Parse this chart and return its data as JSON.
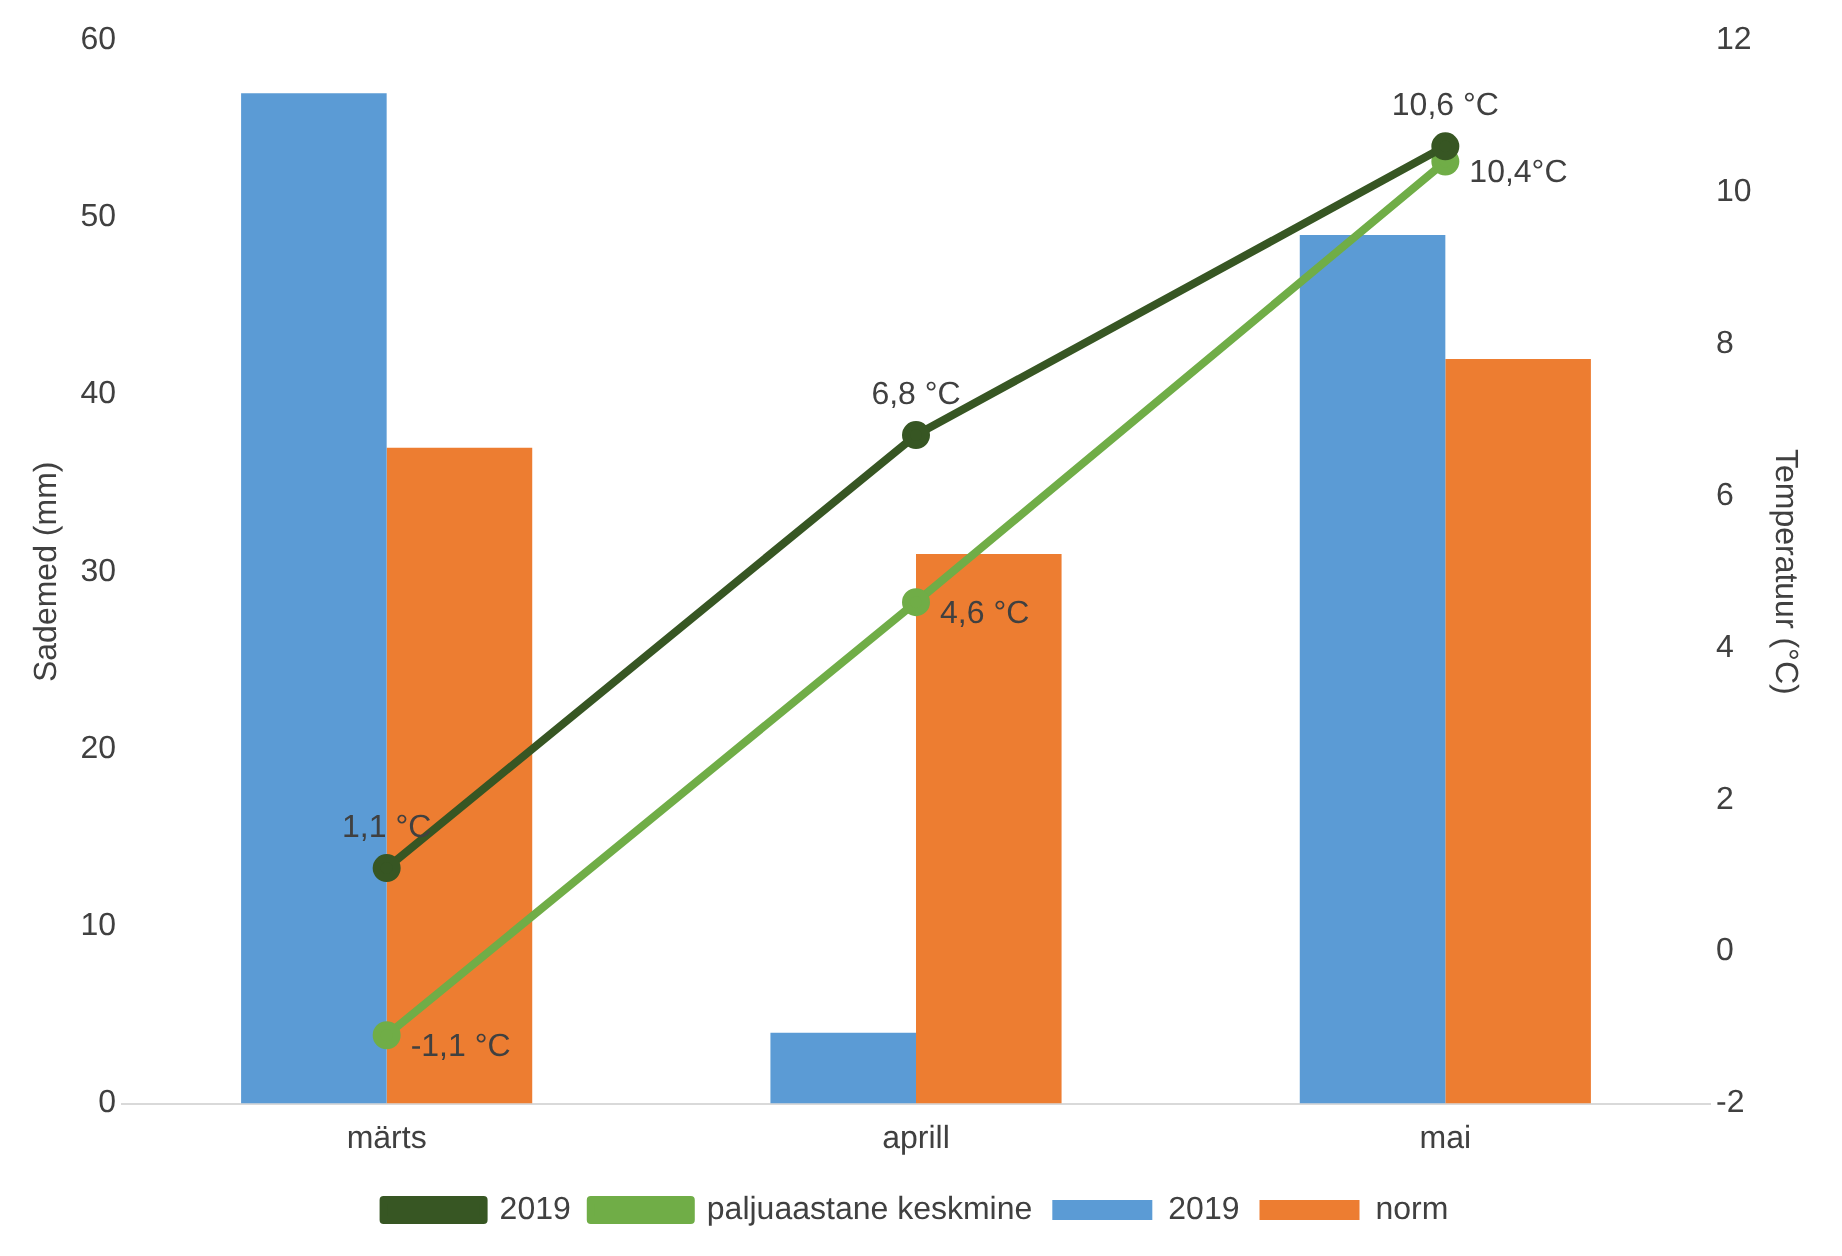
{
  "chart_data": {
    "type": "bar",
    "ylabel": "Sademed (mm)",
    "y2label": "Temperatuur (°C)",
    "categories": [
      "märts",
      "aprill",
      "mai"
    ],
    "series": [
      {
        "name": "2019",
        "color": "#5b9bd5",
        "values": [
          57,
          4,
          49
        ]
      },
      {
        "name": "norm",
        "color": "#ed7d31",
        "values": [
          37,
          31,
          42
        ]
      },
      {
        "name": "2019",
        "type": "line",
        "axis": "y2",
        "color": "#375623",
        "values": [
          1.1,
          6.8,
          10.6
        ],
        "value_labels": [
          "1,1 °C",
          "6,8 °C",
          "10,6 °C"
        ]
      },
      {
        "name": "paljuaastane keskmine",
        "type": "line",
        "axis": "y2",
        "color": "#70ad47",
        "values": [
          -1.1,
          4.6,
          10.4
        ],
        "value_labels": [
          "-1,1 °C",
          "4,6 °C",
          "10,4°C"
        ]
      }
    ],
    "ylim": [
      0,
      60
    ],
    "yticks": [
      0,
      10,
      20,
      30,
      40,
      50,
      60
    ],
    "y2lim": [
      -2,
      12
    ],
    "y2ticks": [
      -2,
      0,
      2,
      4,
      6,
      8,
      10,
      12
    ],
    "grid": false,
    "legend": "bottom",
    "marker": "circle",
    "line_style": "solid"
  }
}
